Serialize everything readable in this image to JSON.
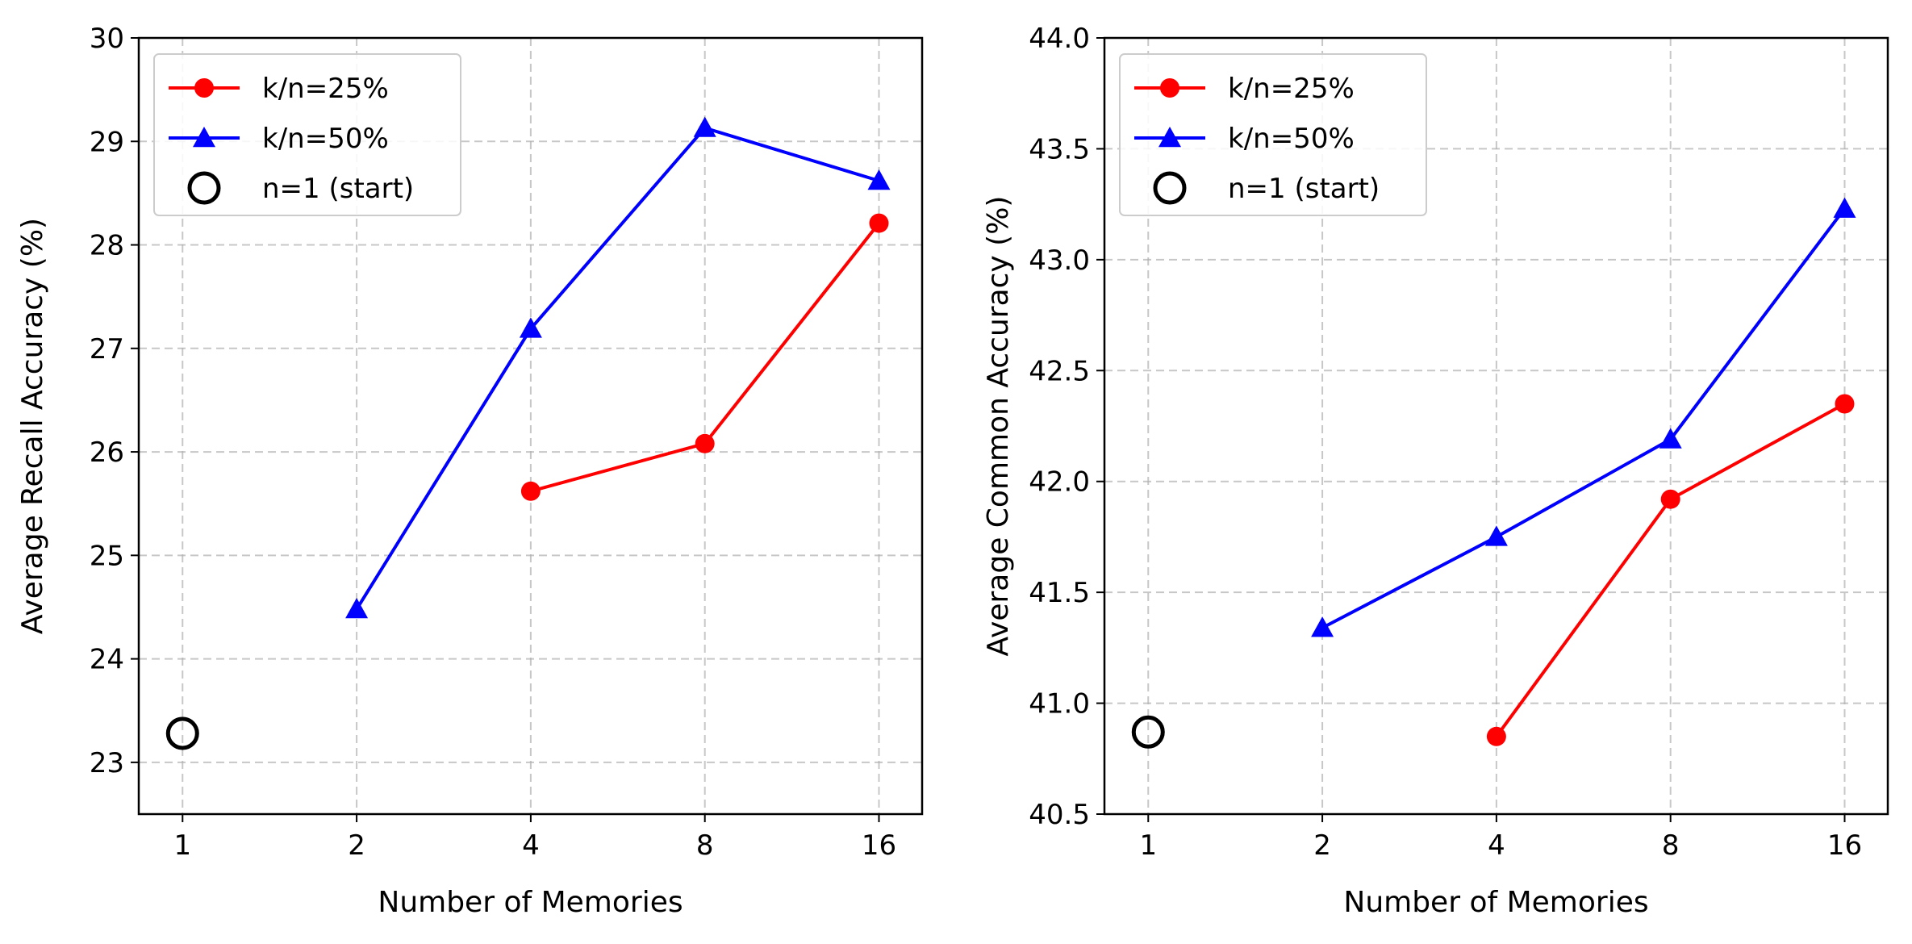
{
  "colors": {
    "series_25": "#ff0000",
    "series_50": "#0000ff",
    "start_marker": "#000000",
    "grid": "#b0b0b0"
  },
  "chart_data": [
    {
      "type": "line",
      "xlabel": "Number of Memories",
      "ylabel": "Average Recall Accuracy (%)",
      "x_scale": "log2",
      "x_ticks": [
        1,
        2,
        4,
        8,
        16
      ],
      "x_tick_labels": [
        "1",
        "2",
        "4",
        "8",
        "16"
      ],
      "xlim": [
        0.84,
        19
      ],
      "ylim": [
        22.5,
        30
      ],
      "y_ticks": [
        23,
        24,
        25,
        26,
        27,
        28,
        29,
        30
      ],
      "y_tick_labels": [
        "23",
        "24",
        "25",
        "26",
        "27",
        "28",
        "29",
        "30"
      ],
      "grid": true,
      "legend_position": "top-left",
      "series": [
        {
          "name": "k/n=25%",
          "marker": "circle",
          "color": "#ff0000",
          "x": [
            4,
            8,
            16
          ],
          "y": [
            25.62,
            26.08,
            28.21
          ]
        },
        {
          "name": "k/n=50%",
          "marker": "triangle",
          "color": "#0000ff",
          "x": [
            2,
            4,
            8,
            16
          ],
          "y": [
            24.48,
            27.19,
            29.13,
            28.62
          ]
        },
        {
          "name": "n=1 (start)",
          "marker": "open-circle",
          "color": "#000000",
          "x": [
            1
          ],
          "y": [
            23.28
          ]
        }
      ]
    },
    {
      "type": "line",
      "xlabel": "Number of Memories",
      "ylabel": "Average Common Accuracy (%)",
      "x_scale": "log2",
      "x_ticks": [
        1,
        2,
        4,
        8,
        16
      ],
      "x_tick_labels": [
        "1",
        "2",
        "4",
        "8",
        "16"
      ],
      "xlim": [
        0.84,
        19
      ],
      "ylim": [
        40.5,
        44.0
      ],
      "y_ticks": [
        40.5,
        41.0,
        41.5,
        42.0,
        42.5,
        43.0,
        43.5,
        44.0
      ],
      "y_tick_labels": [
        "40.5",
        "41.0",
        "41.5",
        "42.0",
        "42.5",
        "43.0",
        "43.5",
        "44.0"
      ],
      "grid": true,
      "legend_position": "top-left",
      "series": [
        {
          "name": "k/n=25%",
          "marker": "circle",
          "color": "#ff0000",
          "x": [
            4,
            8,
            16
          ],
          "y": [
            40.85,
            41.92,
            42.35
          ]
        },
        {
          "name": "k/n=50%",
          "marker": "triangle",
          "color": "#0000ff",
          "x": [
            2,
            4,
            8,
            16
          ],
          "y": [
            41.34,
            41.75,
            42.19,
            43.23
          ]
        },
        {
          "name": "n=1 (start)",
          "marker": "open-circle",
          "color": "#000000",
          "x": [
            1
          ],
          "y": [
            40.87
          ]
        }
      ]
    }
  ]
}
